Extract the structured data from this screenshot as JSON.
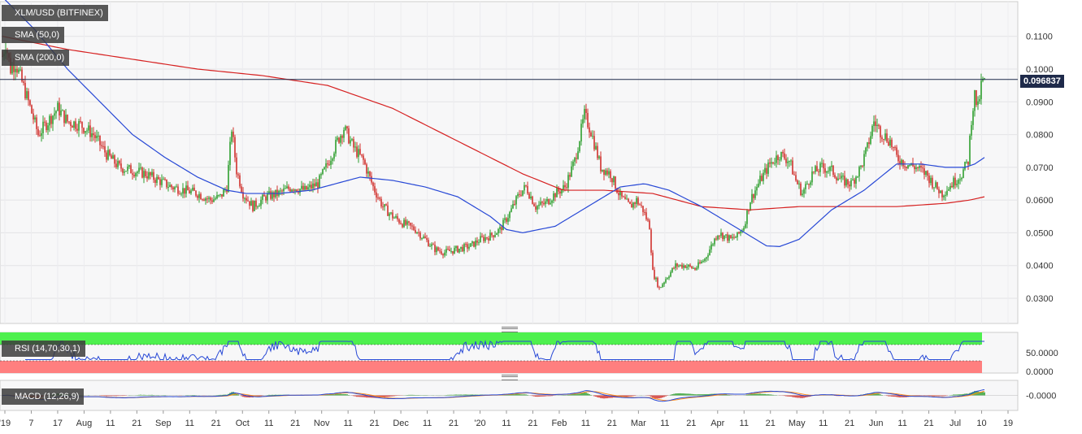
{
  "symbol_label": "XLM/USD (BITFINEX)",
  "sma50_label": "SMA (50,0)",
  "sma200_label": "SMA (200,0)",
  "rsi_label": "RSI (14,70,30,1)",
  "macd_label": "MACD (12,26,9)",
  "current_price": "0.096837",
  "colors": {
    "up": "#2e9e2e",
    "down": "#d0312d",
    "sma50": "#2748d6",
    "sma200": "#d62020",
    "rsi_line": "#2748d6",
    "rsi_overbought": "#4ef04e",
    "rsi_oversold": "#ff7f7f",
    "macd_line": "#2748d6",
    "signal_line": "#ff8c1a",
    "price_line": "#1e2a4a"
  },
  "chart_data": {
    "type": "candlestick",
    "title": "XLM/USD (BITFINEX)",
    "y_ticks": [
      "0.0300",
      "0.0400",
      "0.0500",
      "0.0600",
      "0.0700",
      "0.0800",
      "0.0900",
      "0.1000",
      "0.1100"
    ],
    "ylim": [
      0.022,
      0.12
    ],
    "rsi_ticks": [
      "50.0000",
      "0.0000"
    ],
    "macd_ticks": [
      "-0.0000"
    ],
    "x_ticks": [
      "'19",
      "7",
      "17",
      "Aug",
      "11",
      "21",
      "Sep",
      "11",
      "21",
      "Oct",
      "11",
      "21",
      "Nov",
      "11",
      "21",
      "Dec",
      "11",
      "21",
      "'20",
      "11",
      "21",
      "Feb",
      "11",
      "21",
      "Mar",
      "11",
      "21",
      "Apr",
      "11",
      "21",
      "May",
      "11",
      "21",
      "Jun",
      "11",
      "21",
      "Jul",
      "10",
      "19"
    ],
    "price_anchors": [
      [
        0,
        0.104
      ],
      [
        2,
        0.108
      ],
      [
        5,
        0.1
      ],
      [
        8,
        0.102
      ],
      [
        12,
        0.096
      ],
      [
        16,
        0.09
      ],
      [
        22,
        0.08
      ],
      [
        28,
        0.084
      ],
      [
        34,
        0.088
      ],
      [
        40,
        0.084
      ],
      [
        48,
        0.083
      ],
      [
        56,
        0.08
      ],
      [
        64,
        0.074
      ],
      [
        72,
        0.07
      ],
      [
        80,
        0.069
      ],
      [
        88,
        0.068
      ],
      [
        96,
        0.066
      ],
      [
        104,
        0.064
      ],
      [
        112,
        0.063
      ],
      [
        120,
        0.062
      ],
      [
        128,
        0.06
      ],
      [
        134,
        0.061
      ],
      [
        138,
        0.064
      ],
      [
        141,
        0.082
      ],
      [
        144,
        0.069
      ],
      [
        148,
        0.062
      ],
      [
        154,
        0.058
      ],
      [
        162,
        0.061
      ],
      [
        170,
        0.062
      ],
      [
        178,
        0.064
      ],
      [
        186,
        0.063
      ],
      [
        194,
        0.065
      ],
      [
        200,
        0.071
      ],
      [
        206,
        0.078
      ],
      [
        210,
        0.082
      ],
      [
        216,
        0.076
      ],
      [
        222,
        0.072
      ],
      [
        228,
        0.064
      ],
      [
        234,
        0.058
      ],
      [
        240,
        0.055
      ],
      [
        246,
        0.053
      ],
      [
        254,
        0.051
      ],
      [
        260,
        0.048
      ],
      [
        266,
        0.045
      ],
      [
        272,
        0.044
      ],
      [
        280,
        0.045
      ],
      [
        288,
        0.046
      ],
      [
        294,
        0.048
      ],
      [
        300,
        0.049
      ],
      [
        306,
        0.051
      ],
      [
        312,
        0.056
      ],
      [
        318,
        0.062
      ],
      [
        322,
        0.064
      ],
      [
        328,
        0.058
      ],
      [
        334,
        0.059
      ],
      [
        340,
        0.062
      ],
      [
        346,
        0.064
      ],
      [
        352,
        0.072
      ],
      [
        358,
        0.086
      ],
      [
        362,
        0.081
      ],
      [
        368,
        0.07
      ],
      [
        374,
        0.068
      ],
      [
        380,
        0.061
      ],
      [
        386,
        0.058
      ],
      [
        390,
        0.06
      ],
      [
        394,
        0.057
      ],
      [
        398,
        0.052
      ],
      [
        400,
        0.038
      ],
      [
        404,
        0.033
      ],
      [
        408,
        0.036
      ],
      [
        414,
        0.04
      ],
      [
        420,
        0.04
      ],
      [
        426,
        0.039
      ],
      [
        432,
        0.042
      ],
      [
        436,
        0.046
      ],
      [
        440,
        0.05
      ],
      [
        444,
        0.049
      ],
      [
        448,
        0.048
      ],
      [
        452,
        0.049
      ],
      [
        456,
        0.052
      ],
      [
        460,
        0.06
      ],
      [
        466,
        0.066
      ],
      [
        472,
        0.071
      ],
      [
        478,
        0.074
      ],
      [
        484,
        0.072
      ],
      [
        488,
        0.066
      ],
      [
        492,
        0.062
      ],
      [
        498,
        0.068
      ],
      [
        504,
        0.07
      ],
      [
        510,
        0.069
      ],
      [
        516,
        0.066
      ],
      [
        522,
        0.065
      ],
      [
        528,
        0.07
      ],
      [
        532,
        0.076
      ],
      [
        536,
        0.084
      ],
      [
        540,
        0.081
      ],
      [
        546,
        0.078
      ],
      [
        550,
        0.073
      ],
      [
        556,
        0.071
      ],
      [
        562,
        0.07
      ],
      [
        568,
        0.068
      ],
      [
        574,
        0.064
      ],
      [
        578,
        0.062
      ],
      [
        582,
        0.064
      ],
      [
        586,
        0.066
      ],
      [
        590,
        0.068
      ],
      [
        594,
        0.072
      ],
      [
        596,
        0.085
      ],
      [
        598,
        0.092
      ],
      [
        600,
        0.088
      ],
      [
        602,
        0.095
      ],
      [
        604,
        0.0968
      ]
    ],
    "sma50_anchors": [
      [
        0,
        0.122
      ],
      [
        20,
        0.112
      ],
      [
        40,
        0.1
      ],
      [
        60,
        0.09
      ],
      [
        80,
        0.08
      ],
      [
        100,
        0.073
      ],
      [
        120,
        0.067
      ],
      [
        138,
        0.063
      ],
      [
        150,
        0.062
      ],
      [
        170,
        0.062
      ],
      [
        190,
        0.063
      ],
      [
        205,
        0.065
      ],
      [
        220,
        0.067
      ],
      [
        240,
        0.066
      ],
      [
        260,
        0.064
      ],
      [
        280,
        0.061
      ],
      [
        300,
        0.055
      ],
      [
        310,
        0.051
      ],
      [
        320,
        0.05
      ],
      [
        340,
        0.052
      ],
      [
        360,
        0.058
      ],
      [
        380,
        0.064
      ],
      [
        395,
        0.065
      ],
      [
        410,
        0.063
      ],
      [
        430,
        0.058
      ],
      [
        450,
        0.052
      ],
      [
        470,
        0.046
      ],
      [
        478,
        0.0458
      ],
      [
        490,
        0.048
      ],
      [
        510,
        0.057
      ],
      [
        530,
        0.063
      ],
      [
        550,
        0.071
      ],
      [
        565,
        0.071
      ],
      [
        580,
        0.07
      ],
      [
        592,
        0.07
      ],
      [
        598,
        0.071
      ],
      [
        604,
        0.073
      ]
    ],
    "sma200_anchors": [
      [
        0,
        0.11
      ],
      [
        40,
        0.106
      ],
      [
        80,
        0.103
      ],
      [
        120,
        0.1
      ],
      [
        160,
        0.098
      ],
      [
        200,
        0.095
      ],
      [
        240,
        0.088
      ],
      [
        280,
        0.078
      ],
      [
        320,
        0.068
      ],
      [
        345,
        0.063
      ],
      [
        370,
        0.063
      ],
      [
        400,
        0.062
      ],
      [
        430,
        0.058
      ],
      [
        460,
        0.057
      ],
      [
        490,
        0.058
      ],
      [
        520,
        0.058
      ],
      [
        550,
        0.058
      ],
      [
        580,
        0.059
      ],
      [
        595,
        0.06
      ],
      [
        604,
        0.061
      ]
    ]
  }
}
